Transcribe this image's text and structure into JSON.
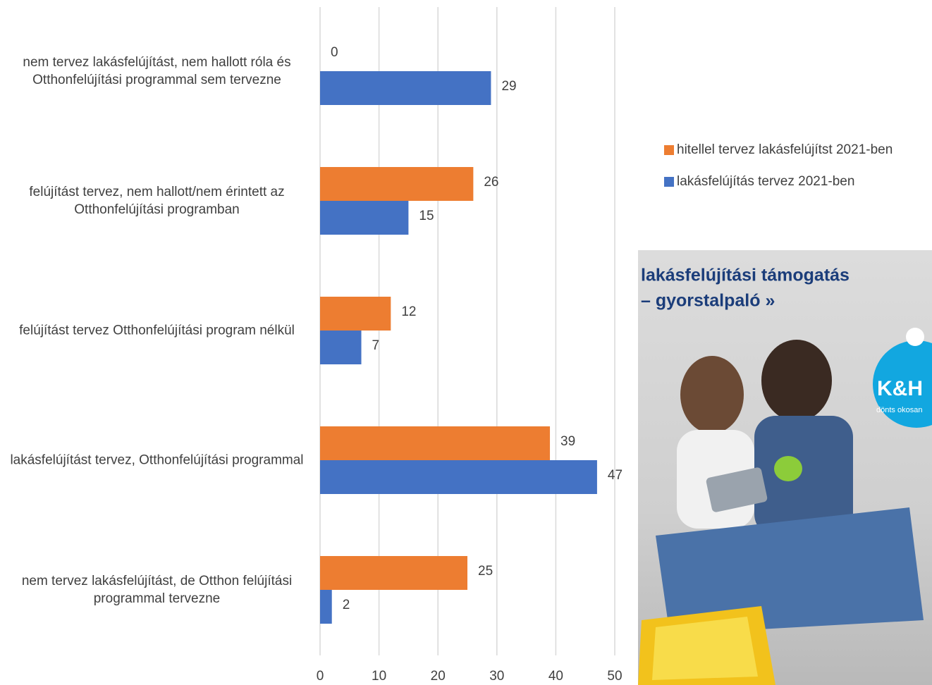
{
  "chart_data": {
    "type": "bar",
    "orientation": "horizontal",
    "categories": [
      "nem tervez lakásfelújítást, nem hallott róla és Otthonfelújítási programmal sem tervezne",
      "felújítást tervez, nem hallott/nem érintett az Otthonfelújítási programban",
      "felújítást tervez Otthonfelújítási program nélkül",
      "lakásfelújítást tervez, Otthonfelújítási programmal",
      "nem tervez lakásfelújítást, de Otthon felújítási programmal  tervezne"
    ],
    "series": [
      {
        "name": "hitellel tervez lakásfelújítst 2021-ben",
        "color": "#ed7d31",
        "values": [
          0,
          26,
          12,
          39,
          25
        ]
      },
      {
        "name": "lakásfelújítás tervez 2021-ben",
        "color": "#4472c4",
        "values": [
          29,
          15,
          7,
          47,
          2
        ]
      }
    ],
    "xlim": [
      0,
      50
    ],
    "xticks": [
      0,
      10,
      20,
      30,
      40,
      50
    ],
    "grid": true,
    "legend": "right"
  },
  "ad": {
    "headline": [
      "lakásfelújítási támogatás",
      "– gyorstalpaló »"
    ],
    "logo": "K&H",
    "slogan": "dönts okosan"
  }
}
